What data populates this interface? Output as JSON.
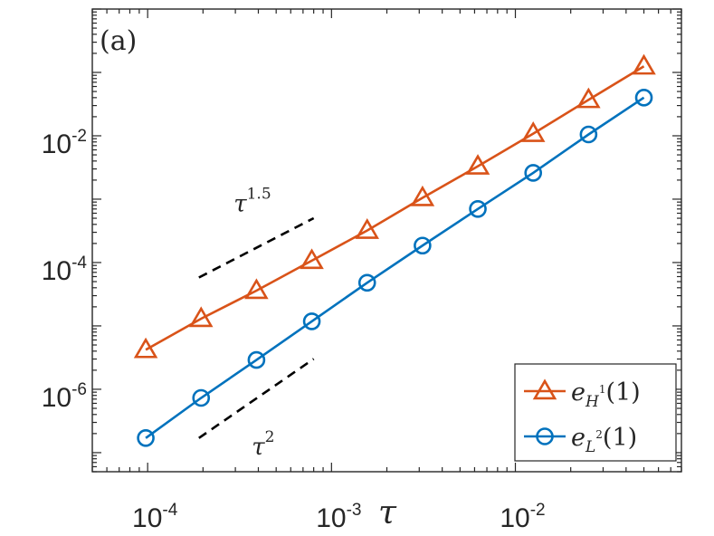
{
  "chart_data": {
    "type": "line",
    "panel_label": "(a)",
    "xscale": "log",
    "yscale": "log",
    "xlim": [
      5e-05,
      0.08
    ],
    "ylim": [
      5e-08,
      1
    ],
    "xlabel": "τ",
    "x_ticks": [
      {
        "value": 0.0001,
        "base": "10",
        "exp": "-4"
      },
      {
        "value": 0.001,
        "base": "10",
        "exp": "-3"
      },
      {
        "value": 0.01,
        "base": "10",
        "exp": "-2"
      }
    ],
    "y_ticks": [
      {
        "value": 0.01,
        "base": "10",
        "exp": "-2"
      },
      {
        "value": 0.0001,
        "base": "10",
        "exp": "-4"
      },
      {
        "value": 1e-06,
        "base": "10",
        "exp": "-6"
      }
    ],
    "series": [
      {
        "name": "e_{H^1}(1)",
        "legend_main": "e",
        "legend_sub": "H",
        "legend_sup": "1",
        "legend_rest": "(1)",
        "color": "#D95319",
        "marker": "triangle",
        "x": [
          9.766e-05,
          0.0001953,
          0.0003906,
          0.0007813,
          0.0015625,
          0.003125,
          0.00625,
          0.0125,
          0.025,
          0.05
        ],
        "y": [
          4.2e-06,
          1.3e-05,
          3.6e-05,
          0.000107,
          0.00032,
          0.00105,
          0.0033,
          0.0108,
          0.037,
          0.125
        ]
      },
      {
        "name": "e_{L^2}(1)",
        "legend_main": "e",
        "legend_sub": "L",
        "legend_sup": "2",
        "legend_rest": "(1)",
        "color": "#0072BD",
        "marker": "circle",
        "x": [
          9.766e-05,
          0.0001953,
          0.0003906,
          0.0007813,
          0.0015625,
          0.003125,
          0.00625,
          0.0125,
          0.025,
          0.05
        ],
        "y": [
          1.7e-07,
          7.3e-07,
          2.9e-06,
          1.18e-05,
          4.8e-05,
          0.000185,
          0.0007,
          0.0026,
          0.0105,
          0.04
        ]
      }
    ],
    "annotations": [
      {
        "label_base": "τ",
        "label_exp": "1.5",
        "slope": 1.5,
        "x_start": 0.00019,
        "x_end": 0.0008,
        "y_start": 5.8e-05
      },
      {
        "label_base": "τ",
        "label_exp": "2",
        "slope": 2,
        "x_start": 0.00019,
        "x_end": 0.0008,
        "y_start": 1.7e-07
      }
    ],
    "legend_position": "bottom-right"
  }
}
